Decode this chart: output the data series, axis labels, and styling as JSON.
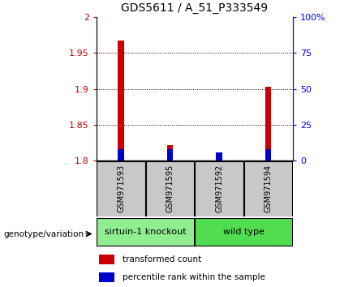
{
  "title": "GDS5611 / A_51_P333549",
  "samples": [
    "GSM971593",
    "GSM971595",
    "GSM971592",
    "GSM971594"
  ],
  "red_values": [
    1.968,
    1.822,
    1.8,
    1.903
  ],
  "blue_values_pct": [
    8,
    8,
    6,
    8
  ],
  "ylim_left": [
    1.8,
    2.0
  ],
  "ylim_right": [
    0,
    100
  ],
  "yticks_left": [
    1.8,
    1.85,
    1.9,
    1.95,
    2.0
  ],
  "yticks_right": [
    0,
    25,
    50,
    75,
    100
  ],
  "ytick_labels_left": [
    "1.8",
    "1.85",
    "1.9",
    "1.95",
    "2"
  ],
  "ytick_labels_right": [
    "0",
    "25",
    "50",
    "75",
    "100%"
  ],
  "groups": [
    {
      "label": "sirtuin-1 knockout",
      "samples": [
        0,
        1
      ],
      "color": "#90EE90"
    },
    {
      "label": "wild type",
      "samples": [
        2,
        3
      ],
      "color": "#50DD50"
    }
  ],
  "bar_width": 0.12,
  "blue_bar_width": 0.12,
  "red_color": "#CC0000",
  "blue_color": "#0000CC",
  "gray_color": "#C8C8C8",
  "legend_red": "transformed count",
  "legend_blue": "percentile rank within the sample",
  "genotype_label": "genotype/variation",
  "title_fontsize": 10
}
